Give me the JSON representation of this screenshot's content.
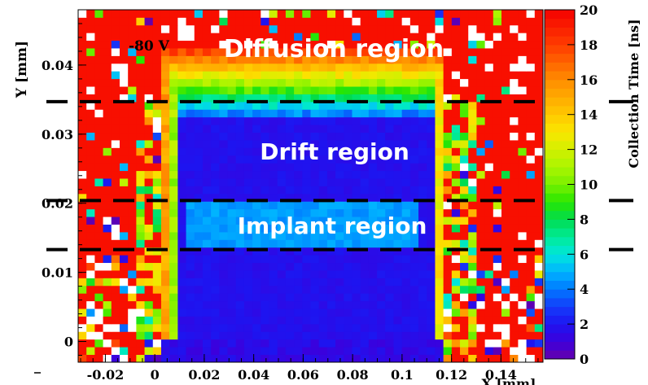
{
  "chart_data": {
    "type": "heatmap",
    "title": "",
    "ylabel": "Y [mm]",
    "xlabel": "X [mm]",
    "annotation": "-80 V",
    "region_labels": [
      "Diffusion region",
      "Drift region",
      "Implant region"
    ],
    "x_ticks": [
      "-0.02",
      "0",
      "0.02",
      "0.04",
      "0.06",
      "0.08",
      "0.1",
      "0.12",
      "0.14"
    ],
    "y_ticks": [
      "0",
      "0.01",
      "0.02",
      "0.03",
      "0.04"
    ],
    "x_tick_values": [
      -0.02,
      0,
      0.02,
      0.04,
      0.06,
      0.08,
      0.1,
      0.12,
      0.14
    ],
    "y_tick_values": [
      0,
      0.01,
      0.02,
      0.03,
      0.04
    ],
    "xlim": [
      -0.031,
      0.157
    ],
    "ylim": [
      -0.003,
      0.048
    ],
    "colorbar": {
      "label": "Collection Time [ns]",
      "range": [
        0,
        20
      ],
      "ticks": [
        "0",
        "2",
        "4",
        "6",
        "8",
        "10",
        "12",
        "14",
        "16",
        "18",
        "20"
      ],
      "tick_values": [
        0,
        2,
        4,
        6,
        8,
        10,
        12,
        14,
        16,
        18,
        20
      ]
    },
    "boundary_lines_y": [
      0.0347,
      0.0204,
      0.0133
    ],
    "regions": [
      {
        "name": "Diffusion region",
        "y_range": [
          0.0347,
          0.048
        ],
        "collection_time_ns": 19
      },
      {
        "name": "Drift region",
        "y_range": [
          0.0204,
          0.0347
        ],
        "collection_time_ns": 1.5
      },
      {
        "name": "Implant region",
        "y_range": [
          0.0133,
          0.0204
        ],
        "collection_time_ns": 4.5
      }
    ]
  }
}
